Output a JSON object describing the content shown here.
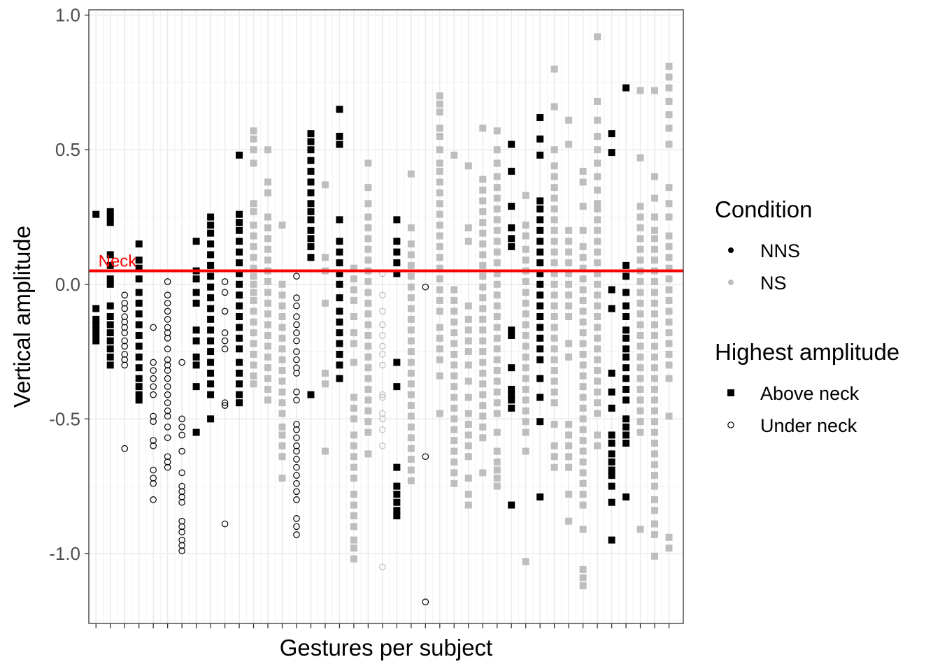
{
  "chart_data": {
    "type": "scatter",
    "title": "",
    "xlabel": "Gestures per subject",
    "ylabel": "Vertical amplitude",
    "ylim": [
      -1.26,
      1.02
    ],
    "yticks": [
      1.0,
      0.5,
      0.0,
      -0.5,
      -1.0
    ],
    "ytick_labels": [
      "1.0",
      "0.5",
      "0.0",
      "-0.5",
      "-1.0"
    ],
    "n_subjects": 41,
    "grid": true,
    "legend_position": "right",
    "reference_line": {
      "y": 0.05,
      "label": "Neck",
      "color": "#ff0000"
    },
    "colors": {
      "NNS": "#000000",
      "NS": "#bebebe"
    },
    "legends": [
      {
        "title": "Condition",
        "entries": [
          {
            "label": "NNS",
            "shape": "dot",
            "color": "#000000"
          },
          {
            "label": "NS",
            "shape": "dot",
            "color": "#bebebe"
          }
        ]
      },
      {
        "title": "Highest amplitude",
        "entries": [
          {
            "label": "Above neck",
            "shape": "square"
          },
          {
            "label": "Under neck",
            "shape": "open-circle"
          }
        ]
      }
    ],
    "subjects": [
      {
        "x": 1,
        "condition": "NNS",
        "shape": "square",
        "y": [
          0.26,
          -0.09,
          -0.13,
          -0.15,
          -0.17,
          -0.19,
          -0.21
        ]
      },
      {
        "x": 2,
        "condition": "NNS",
        "shape": "square",
        "y": [
          0.27,
          0.25,
          0.23,
          0.11,
          0.07,
          0.02,
          0.0,
          -0.08,
          -0.12,
          -0.15,
          -0.18,
          -0.21,
          -0.24,
          -0.27,
          -0.3
        ]
      },
      {
        "x": 3,
        "condition": "NNS",
        "shape": "circle",
        "y": [
          -0.04,
          -0.07,
          -0.09,
          -0.12,
          -0.14,
          -0.16,
          -0.18,
          -0.21,
          -0.23,
          -0.26,
          -0.28,
          -0.3,
          -0.61
        ]
      },
      {
        "x": 4,
        "condition": "NNS",
        "shape": "square",
        "y": [
          0.15,
          0.09,
          0.06,
          0.02,
          -0.03,
          -0.07,
          -0.11,
          -0.15,
          -0.19,
          -0.23,
          -0.27,
          -0.31,
          -0.35,
          -0.38,
          -0.41,
          -0.43
        ]
      },
      {
        "x": 5,
        "condition": "NNS",
        "shape": "circle",
        "y": [
          -0.16,
          -0.29,
          -0.32,
          -0.35,
          -0.38,
          -0.41,
          -0.49,
          -0.51,
          -0.58,
          -0.6,
          -0.69,
          -0.72,
          -0.74,
          -0.8
        ]
      },
      {
        "x": 6,
        "condition": "NNS",
        "shape": "circle",
        "y": [
          0.01,
          -0.04,
          -0.07,
          -0.1,
          -0.13,
          -0.16,
          -0.18,
          -0.2,
          -0.24,
          -0.28,
          -0.3,
          -0.32,
          -0.35,
          -0.38,
          -0.41,
          -0.44,
          -0.47,
          -0.49,
          -0.53,
          -0.57,
          -0.64,
          -0.66,
          -0.68
        ]
      },
      {
        "x": 7,
        "condition": "NNS",
        "shape": "circle",
        "y": [
          -0.29,
          -0.5,
          -0.53,
          -0.56,
          -0.62,
          -0.7,
          -0.75,
          -0.77,
          -0.79,
          -0.81,
          -0.88,
          -0.9,
          -0.92,
          -0.95,
          -0.97,
          -0.99
        ]
      },
      {
        "x": 8,
        "condition": "NNS",
        "shape": "square",
        "y": [
          0.16,
          0.05,
          0.02,
          -0.03,
          -0.07,
          -0.17,
          -0.21,
          -0.27,
          -0.3,
          -0.38,
          -0.55
        ]
      },
      {
        "x": 9,
        "condition": "NNS",
        "shape": "square",
        "y": [
          0.25,
          0.22,
          0.19,
          0.15,
          0.11,
          0.07,
          0.03,
          -0.01,
          -0.05,
          -0.09,
          -0.13,
          -0.17,
          -0.21,
          -0.25,
          -0.29,
          -0.33,
          -0.37,
          -0.41,
          -0.5
        ]
      },
      {
        "x": 10,
        "condition": "NNS",
        "shape": "circle",
        "y": [
          0.01,
          -0.03,
          -0.1,
          -0.18,
          -0.21,
          -0.24,
          -0.44,
          -0.45,
          -0.89
        ]
      },
      {
        "x": 11,
        "condition": "NNS",
        "shape": "square",
        "y": [
          0.48,
          0.26,
          0.23,
          0.2,
          0.16,
          0.12,
          0.08,
          0.04,
          0.0,
          -0.04,
          -0.08,
          -0.12,
          -0.16,
          -0.2,
          -0.24,
          -0.29,
          -0.33,
          -0.37,
          -0.41,
          -0.44
        ]
      },
      {
        "x": 12,
        "condition": "NS",
        "shape": "square",
        "y": [
          0.57,
          0.54,
          0.5,
          0.45,
          0.3,
          0.27,
          0.22,
          0.18,
          0.14,
          0.1,
          0.06,
          0.03,
          0.0,
          -0.03,
          -0.06,
          -0.1,
          -0.14,
          -0.18,
          -0.22,
          -0.26,
          -0.3,
          -0.34,
          -0.37
        ]
      },
      {
        "x": 13,
        "condition": "NS",
        "shape": "square",
        "y": [
          0.5,
          0.38,
          0.34,
          0.25,
          0.21,
          0.17,
          0.13,
          0.09,
          0.05,
          0.01,
          -0.03,
          -0.07,
          -0.11,
          -0.15,
          -0.19,
          -0.23,
          -0.27,
          -0.31,
          -0.35,
          -0.39,
          -0.43
        ]
      },
      {
        "x": 14,
        "condition": "NS",
        "shape": "square",
        "y": [
          0.22,
          0.0,
          -0.04,
          -0.08,
          -0.12,
          -0.16,
          -0.2,
          -0.24,
          -0.28,
          -0.32,
          -0.36,
          -0.4,
          -0.44,
          -0.48,
          -0.53,
          -0.56,
          -0.6,
          -0.64,
          -0.72
        ]
      },
      {
        "x": 15,
        "condition": "NNS",
        "shape": "circle",
        "y": [
          0.03,
          -0.05,
          -0.08,
          -0.12,
          -0.15,
          -0.18,
          -0.21,
          -0.25,
          -0.28,
          -0.31,
          -0.33,
          -0.4,
          -0.43,
          -0.52,
          -0.54,
          -0.57,
          -0.6,
          -0.62,
          -0.65,
          -0.68,
          -0.71,
          -0.74,
          -0.77,
          -0.8,
          -0.87,
          -0.9,
          -0.93
        ]
      },
      {
        "x": 16,
        "condition": "NNS",
        "shape": "square",
        "y": [
          0.56,
          0.53,
          0.5,
          0.46,
          0.42,
          0.38,
          0.34,
          0.3,
          0.27,
          0.24,
          0.2,
          0.17,
          0.14,
          0.1,
          -0.41
        ]
      },
      {
        "x": 17,
        "condition": "NS",
        "shape": "square",
        "y": [
          0.37,
          0.1,
          0.05,
          -0.07,
          -0.33,
          -0.37,
          -0.62
        ]
      },
      {
        "x": 18,
        "condition": "NNS",
        "shape": "square",
        "y": [
          0.65,
          0.55,
          0.52,
          0.24,
          0.16,
          0.12,
          0.08,
          0.04,
          0.0,
          -0.05,
          -0.1,
          -0.14,
          -0.18,
          -0.22,
          -0.26,
          -0.3,
          -0.35
        ]
      },
      {
        "x": 19,
        "condition": "NS",
        "shape": "square",
        "y": [
          0.06,
          0.02,
          -0.02,
          -0.06,
          -0.12,
          -0.18,
          -0.22,
          -0.29,
          -0.42,
          -0.46,
          -0.5,
          -0.56,
          -0.6,
          -0.64,
          -0.68,
          -0.72,
          -0.78,
          -0.82,
          -0.86,
          -0.9,
          -0.95,
          -0.98,
          -1.02
        ]
      },
      {
        "x": 20,
        "condition": "NS",
        "shape": "square",
        "y": [
          0.45,
          0.36,
          0.3,
          0.25,
          0.21,
          0.17,
          0.13,
          0.09,
          0.05,
          0.01,
          -0.03,
          -0.07,
          -0.11,
          -0.15,
          -0.19,
          -0.23,
          -0.27,
          -0.31,
          -0.35,
          -0.39,
          -0.43,
          -0.47,
          -0.51,
          -0.55,
          -0.63
        ]
      },
      {
        "x": 21,
        "condition": "NS",
        "shape": "circle",
        "y": [
          0.04,
          -0.04,
          -0.1,
          -0.15,
          -0.19,
          -0.23,
          -0.26,
          -0.3,
          -0.41,
          -0.42,
          -0.48,
          -0.5,
          -0.54,
          -0.6,
          -1.05
        ]
      },
      {
        "x": 22,
        "condition": "NNS",
        "shape": "square",
        "y": [
          0.24,
          0.16,
          0.12,
          0.08,
          0.04,
          -0.29,
          -0.38,
          -0.68,
          -0.75,
          -0.78,
          -0.81,
          -0.84,
          -0.86
        ]
      },
      {
        "x": 23,
        "condition": "NS",
        "shape": "square",
        "y": [
          0.41,
          0.21,
          0.15,
          0.11,
          0.07,
          0.03,
          -0.01,
          -0.05,
          -0.09,
          -0.13,
          -0.17,
          -0.21,
          -0.25,
          -0.29,
          -0.33,
          -0.37,
          -0.41,
          -0.45,
          -0.49,
          -0.53,
          -0.57,
          -0.61,
          -0.65,
          -0.69,
          -0.73
        ]
      },
      {
        "x": 24,
        "condition": "NNS",
        "shape": "circle",
        "y": [
          -0.01,
          -0.64,
          -1.18
        ]
      },
      {
        "x": 25,
        "condition": "NS",
        "shape": "square",
        "y": [
          0.7,
          0.67,
          0.64,
          0.58,
          0.55,
          0.5,
          0.45,
          0.42,
          0.38,
          0.34,
          0.3,
          0.26,
          0.22,
          0.18,
          0.14,
          0.1,
          0.06,
          0.02,
          -0.02,
          -0.06,
          -0.1,
          -0.16,
          -0.2,
          -0.24,
          -0.28,
          -0.34,
          -0.48
        ]
      },
      {
        "x": 26,
        "condition": "NS",
        "shape": "square",
        "y": [
          0.48,
          -0.02,
          -0.06,
          -0.1,
          -0.14,
          -0.18,
          -0.22,
          -0.26,
          -0.3,
          -0.34,
          -0.38,
          -0.42,
          -0.46,
          -0.5,
          -0.54,
          -0.58,
          -0.62,
          -0.66,
          -0.7,
          -0.74
        ]
      },
      {
        "x": 27,
        "condition": "NS",
        "shape": "square",
        "y": [
          0.44,
          0.21,
          0.16,
          -0.08,
          -0.13,
          -0.17,
          -0.21,
          -0.25,
          -0.3,
          -0.36,
          -0.42,
          -0.48,
          -0.52,
          -0.56,
          -0.6,
          -0.64,
          -0.72,
          -0.78,
          -0.82
        ]
      },
      {
        "x": 28,
        "condition": "NS",
        "shape": "square",
        "y": [
          0.58,
          0.39,
          0.35,
          0.31,
          0.27,
          0.23,
          0.19,
          0.15,
          0.11,
          0.07,
          0.03,
          -0.01,
          -0.05,
          -0.09,
          -0.13,
          -0.17,
          -0.21,
          -0.25,
          -0.29,
          -0.33,
          -0.37,
          -0.41,
          -0.45,
          -0.49,
          -0.53,
          -0.57,
          -0.7
        ]
      },
      {
        "x": 29,
        "condition": "NS",
        "shape": "square",
        "y": [
          0.57,
          0.5,
          0.45,
          0.4,
          0.36,
          0.32,
          0.28,
          0.24,
          0.2,
          0.16,
          0.12,
          0.08,
          0.04,
          0.0,
          -0.04,
          -0.08,
          -0.12,
          -0.16,
          -0.2,
          -0.24,
          -0.28,
          -0.32,
          -0.36,
          -0.4,
          -0.44,
          -0.48,
          -0.55,
          -0.62,
          -0.66,
          -0.69,
          -0.72,
          -0.75
        ]
      },
      {
        "x": 30,
        "condition": "NNS",
        "shape": "square",
        "y": [
          0.52,
          0.42,
          0.29,
          0.21,
          0.17,
          0.14,
          -0.17,
          -0.19,
          -0.31,
          -0.39,
          -0.41,
          -0.43,
          -0.46,
          -0.82
        ]
      },
      {
        "x": 31,
        "condition": "NS",
        "shape": "square",
        "y": [
          0.33,
          0.22,
          0.18,
          0.13,
          0.09,
          0.05,
          0.01,
          -0.03,
          -0.07,
          -0.11,
          -0.15,
          -0.19,
          -0.23,
          -0.27,
          -0.31,
          -0.35,
          -0.39,
          -0.43,
          -0.47,
          -0.51,
          -0.55,
          -0.62,
          -1.03
        ]
      },
      {
        "x": 32,
        "condition": "NNS",
        "shape": "square",
        "y": [
          0.62,
          0.54,
          0.48,
          0.31,
          0.28,
          0.24,
          0.2,
          0.16,
          0.12,
          0.08,
          0.04,
          0.0,
          -0.04,
          -0.08,
          -0.12,
          -0.16,
          -0.2,
          -0.24,
          -0.28,
          -0.35,
          -0.42,
          -0.51,
          -0.79
        ]
      },
      {
        "x": 33,
        "condition": "NS",
        "shape": "square",
        "y": [
          0.8,
          0.66,
          0.5,
          0.44,
          0.4,
          0.36,
          0.32,
          0.28,
          0.24,
          0.2,
          0.16,
          0.12,
          0.08,
          0.04,
          0.0,
          -0.04,
          -0.08,
          -0.12,
          -0.16,
          -0.2,
          -0.24,
          -0.28,
          -0.32,
          -0.36,
          -0.4,
          -0.44,
          -0.52,
          -0.6,
          -0.64,
          -0.68
        ]
      },
      {
        "x": 34,
        "condition": "NS",
        "shape": "square",
        "y": [
          0.61,
          0.52,
          0.2,
          0.16,
          0.12,
          0.08,
          0.04,
          0.0,
          -0.04,
          -0.08,
          -0.12,
          -0.22,
          -0.27,
          -0.52,
          -0.56,
          -0.6,
          -0.64,
          -0.68,
          -0.78,
          -0.88
        ]
      },
      {
        "x": 35,
        "condition": "NS",
        "shape": "square",
        "y": [
          0.42,
          0.38,
          0.29,
          0.2,
          0.14,
          0.1,
          0.06,
          0.02,
          -0.02,
          -0.06,
          -0.1,
          -0.14,
          -0.18,
          -0.22,
          -0.26,
          -0.3,
          -0.34,
          -0.38,
          -0.42,
          -0.46,
          -0.5,
          -0.54,
          -0.58,
          -0.62,
          -0.66,
          -0.7,
          -0.74,
          -0.78,
          -0.82,
          -0.91,
          -1.06,
          -1.09,
          -1.12
        ]
      },
      {
        "x": 36,
        "condition": "NS",
        "shape": "square",
        "y": [
          0.92,
          0.68,
          0.61,
          0.55,
          0.5,
          0.45,
          0.4,
          0.35,
          0.3,
          0.28,
          0.24,
          0.2,
          0.16,
          0.12,
          0.08,
          0.04,
          0.0,
          -0.04,
          -0.08,
          -0.12,
          -0.16,
          -0.2,
          -0.24,
          -0.28,
          -0.32,
          -0.36,
          -0.4,
          -0.44,
          -0.48,
          -0.56,
          -0.6
        ]
      },
      {
        "x": 37,
        "condition": "NNS",
        "shape": "square",
        "y": [
          0.56,
          0.49,
          -0.02,
          -0.09,
          -0.33,
          -0.4,
          -0.46,
          -0.56,
          -0.59,
          -0.63,
          -0.66,
          -0.69,
          -0.71,
          -0.75,
          -0.81,
          -0.95
        ]
      },
      {
        "x": 38,
        "condition": "NNS",
        "shape": "square",
        "y": [
          0.73,
          0.07,
          0.03,
          -0.03,
          -0.08,
          -0.12,
          -0.17,
          -0.2,
          -0.24,
          -0.27,
          -0.31,
          -0.35,
          -0.39,
          -0.43,
          -0.5,
          -0.53,
          -0.56,
          -0.59,
          -0.79
        ]
      },
      {
        "x": 39,
        "condition": "NS",
        "shape": "square",
        "y": [
          0.72,
          0.47,
          0.29,
          0.25,
          0.21,
          0.17,
          0.13,
          0.09,
          0.05,
          0.01,
          -0.03,
          -0.07,
          -0.11,
          -0.15,
          -0.19,
          -0.23,
          -0.27,
          -0.31,
          -0.35,
          -0.39,
          -0.43,
          -0.47,
          -0.51,
          -0.55,
          -0.91
        ]
      },
      {
        "x": 40,
        "condition": "NS",
        "shape": "square",
        "y": [
          0.72,
          0.4,
          0.32,
          0.25,
          0.2,
          0.17,
          0.13,
          0.09,
          0.05,
          0.01,
          -0.03,
          -0.07,
          -0.11,
          -0.15,
          -0.19,
          -0.23,
          -0.27,
          -0.31,
          -0.35,
          -0.39,
          -0.43,
          -0.47,
          -0.51,
          -0.55,
          -0.59,
          -0.63,
          -0.67,
          -0.71,
          -0.75,
          -0.8,
          -0.84,
          -0.89,
          -0.93,
          -1.01
        ]
      },
      {
        "x": 41,
        "condition": "NS",
        "shape": "square",
        "y": [
          0.81,
          0.77,
          0.73,
          0.68,
          0.63,
          0.58,
          0.52,
          0.36,
          0.3,
          0.25,
          0.18,
          0.14,
          0.1,
          0.06,
          0.02,
          -0.02,
          -0.06,
          -0.1,
          -0.14,
          -0.18,
          -0.22,
          -0.26,
          -0.3,
          -0.35,
          -0.49,
          -0.94,
          -0.98
        ]
      }
    ]
  }
}
